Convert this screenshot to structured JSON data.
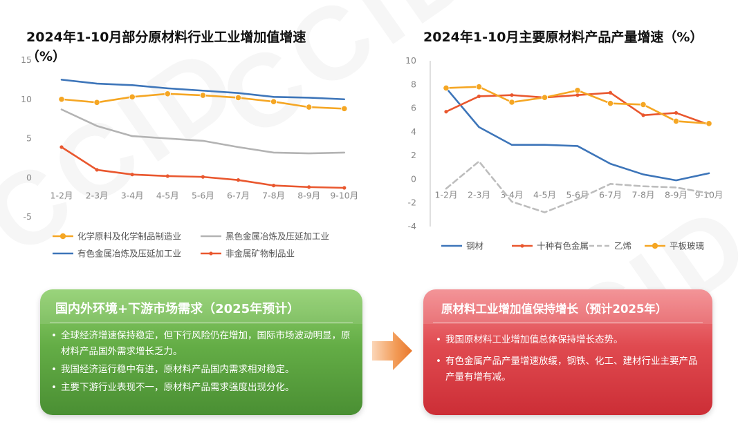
{
  "watermark": "CCID",
  "left_chart": {
    "title_line1": "2024年1-10月部分原材料行业工业增加值增速",
    "title_line2": "（%）"
  },
  "right_chart": {
    "title": "2024年1-10月主要原材料产品产量增速（%）"
  },
  "chart_data": [
    {
      "type": "line",
      "title": "2024年1-10月部分原材料行业工业增加值增速（%）",
      "categories": [
        "1-2月",
        "2-3月",
        "3-4月",
        "4-5月",
        "5-6月",
        "6-7月",
        "7-8月",
        "8-9月",
        "9-10月"
      ],
      "ylim": [
        -5,
        15
      ],
      "yticks": [
        15,
        10,
        5,
        0,
        -5
      ],
      "grid": false,
      "legend_position": "bottom",
      "series": [
        {
          "name": "化学原料及化学制品制造业",
          "color": "#f5a623",
          "marker": "circle",
          "values": [
            10.0,
            9.6,
            10.3,
            10.7,
            10.5,
            10.2,
            9.7,
            9.0,
            8.8
          ]
        },
        {
          "name": "黑色金属冶炼及压延加工业",
          "color": "#b3b3b3",
          "marker": "none",
          "values": [
            8.7,
            6.6,
            5.3,
            5.0,
            4.7,
            3.9,
            3.2,
            3.1,
            3.2
          ]
        },
        {
          "name": "有色金属冶炼及压延加工业",
          "color": "#3d75b9",
          "marker": "none",
          "values": [
            12.5,
            12.0,
            11.8,
            11.4,
            11.1,
            10.8,
            10.3,
            10.2,
            10.0
          ]
        },
        {
          "name": "非金属矿物制品业",
          "color": "#e9572e",
          "marker": "dot",
          "values": [
            3.9,
            1.0,
            0.4,
            0.2,
            0.1,
            -0.3,
            -1.0,
            -1.2,
            -1.3
          ]
        }
      ]
    },
    {
      "type": "line",
      "title": "2024年1-10月主要原材料产品产量增速（%）",
      "categories": [
        "1-2月",
        "2-3月",
        "3-4月",
        "4-5月",
        "5-6月",
        "6-7月",
        "7-8月",
        "8-9月",
        "9-10月"
      ],
      "ylim": [
        -4,
        10
      ],
      "yticks": [
        10,
        8,
        6,
        4,
        2,
        0,
        -2,
        -4
      ],
      "grid": false,
      "legend_position": "bottom",
      "series": [
        {
          "name": "钢材",
          "color": "#3d75b9",
          "marker": "none",
          "dash": false,
          "values": [
            7.7,
            4.4,
            2.9,
            2.9,
            2.8,
            1.3,
            0.4,
            -0.1,
            0.5
          ]
        },
        {
          "name": "十种有色金属",
          "color": "#e9572e",
          "marker": "dot",
          "dash": false,
          "values": [
            5.7,
            7.0,
            7.1,
            6.9,
            7.1,
            7.3,
            5.4,
            5.6,
            4.6
          ]
        },
        {
          "name": "乙烯",
          "color": "#bdbdbd",
          "marker": "none",
          "dash": true,
          "values": [
            -0.8,
            1.5,
            -1.9,
            -2.8,
            -1.7,
            -0.4,
            -0.6,
            -0.7,
            -1.2
          ]
        },
        {
          "name": "平板玻璃",
          "color": "#f5a623",
          "marker": "circle",
          "dash": false,
          "values": [
            7.7,
            7.8,
            6.5,
            6.9,
            7.5,
            6.4,
            6.3,
            4.9,
            4.7
          ]
        }
      ]
    }
  ],
  "left_box": {
    "title": "国内外环境+下游市场需求（2025年预计）",
    "items": [
      "全球经济增速保持稳定，但下行风险仍在增加，国际市场波动明显，原材料产品国外需求增长乏力。",
      "我国经济运行稳中有进，原材料产品国内需求相对稳定。",
      "主要下游行业表现不一，原材料产品需求强度出现分化。"
    ],
    "color": "#5fa743"
  },
  "right_box": {
    "title": "原材料工业增加值保持增长（预计2025年）",
    "items": [
      "我国原材料工业增加值总体保持增长态势。",
      "有色金属产品产量增速放缓，钢铁、化工、建材行业主要产品产量有增有减。"
    ],
    "color": "#db3a40"
  },
  "arrow_color": "#ee8a3c"
}
